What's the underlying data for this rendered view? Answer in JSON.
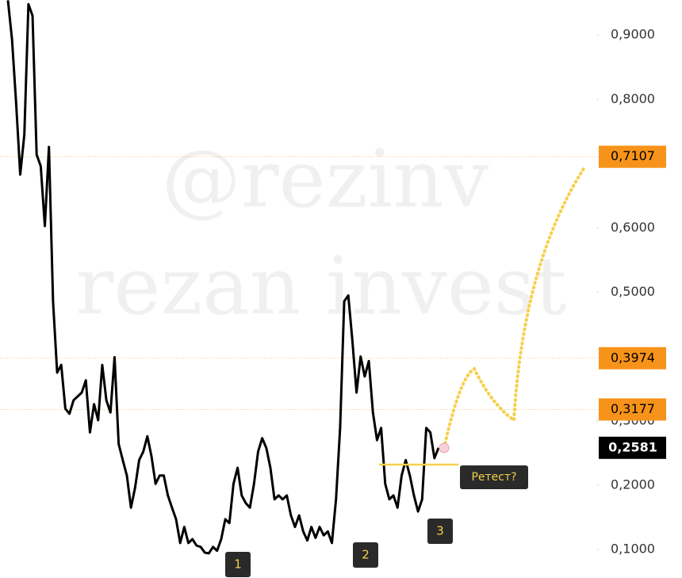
{
  "chart_data": {
    "type": "line",
    "watermarks": [
      "@rezinv",
      "rezan invest"
    ],
    "series": [
      {
        "color": "#000000",
        "values": [
          0.954,
          0.893,
          0.794,
          0.683,
          0.745,
          0.948,
          0.93,
          0.714,
          0.696,
          0.603,
          0.726,
          0.486,
          0.375,
          0.387,
          0.319,
          0.311,
          0.332,
          0.338,
          0.344,
          0.363,
          0.282,
          0.326,
          0.301,
          0.387,
          0.332,
          0.313,
          0.399,
          0.264,
          0.239,
          0.215,
          0.165,
          0.196,
          0.239,
          0.252,
          0.276,
          0.245,
          0.202,
          0.215,
          0.215,
          0.184,
          0.165,
          0.147,
          0.11,
          0.135,
          0.11,
          0.116,
          0.106,
          0.104,
          0.095,
          0.094,
          0.104,
          0.098,
          0.116,
          0.147,
          0.141,
          0.202,
          0.227,
          0.184,
          0.172,
          0.165,
          0.202,
          0.252,
          0.273,
          0.258,
          0.227,
          0.178,
          0.184,
          0.178,
          0.184,
          0.153,
          0.135,
          0.153,
          0.128,
          0.114,
          0.135,
          0.118,
          0.135,
          0.122,
          0.128,
          0.11,
          0.178,
          0.289,
          0.486,
          0.495,
          0.424,
          0.344,
          0.4,
          0.369,
          0.393,
          0.313,
          0.27,
          0.289,
          0.202,
          0.178,
          0.184,
          0.165,
          0.215,
          0.239,
          0.215,
          0.184,
          0.159,
          0.178,
          0.289,
          0.282,
          0.242,
          0.258
        ]
      }
    ],
    "projection": {
      "color": "#f5d04a",
      "values": [
        0.258,
        0.381,
        0.301,
        0.696
      ]
    },
    "retest_level": 0.232,
    "ylim": [
      0.0556,
      0.9545
    ],
    "yticks": [
      {
        "value": 0.1,
        "label": "0,1000"
      },
      {
        "value": 0.2,
        "label": "0,2000"
      },
      {
        "value": 0.3,
        "label": "0,3000"
      },
      {
        "value": 0.5,
        "label": "0,5000"
      },
      {
        "value": 0.6,
        "label": "0,6000"
      },
      {
        "value": 0.8,
        "label": "0,8000"
      },
      {
        "value": 0.9,
        "label": "0,9000"
      }
    ],
    "price_levels": [
      {
        "value": 0.7107,
        "label": "0,7107"
      },
      {
        "value": 0.3974,
        "label": "0,3974"
      },
      {
        "value": 0.3177,
        "label": "0,3177"
      }
    ],
    "level_color": "#f7931a",
    "current_price": {
      "value": 0.2581,
      "label": "0,2581"
    },
    "annotations": {
      "retest": "Ретест?",
      "markers": [
        "1",
        "2",
        "3"
      ]
    }
  }
}
